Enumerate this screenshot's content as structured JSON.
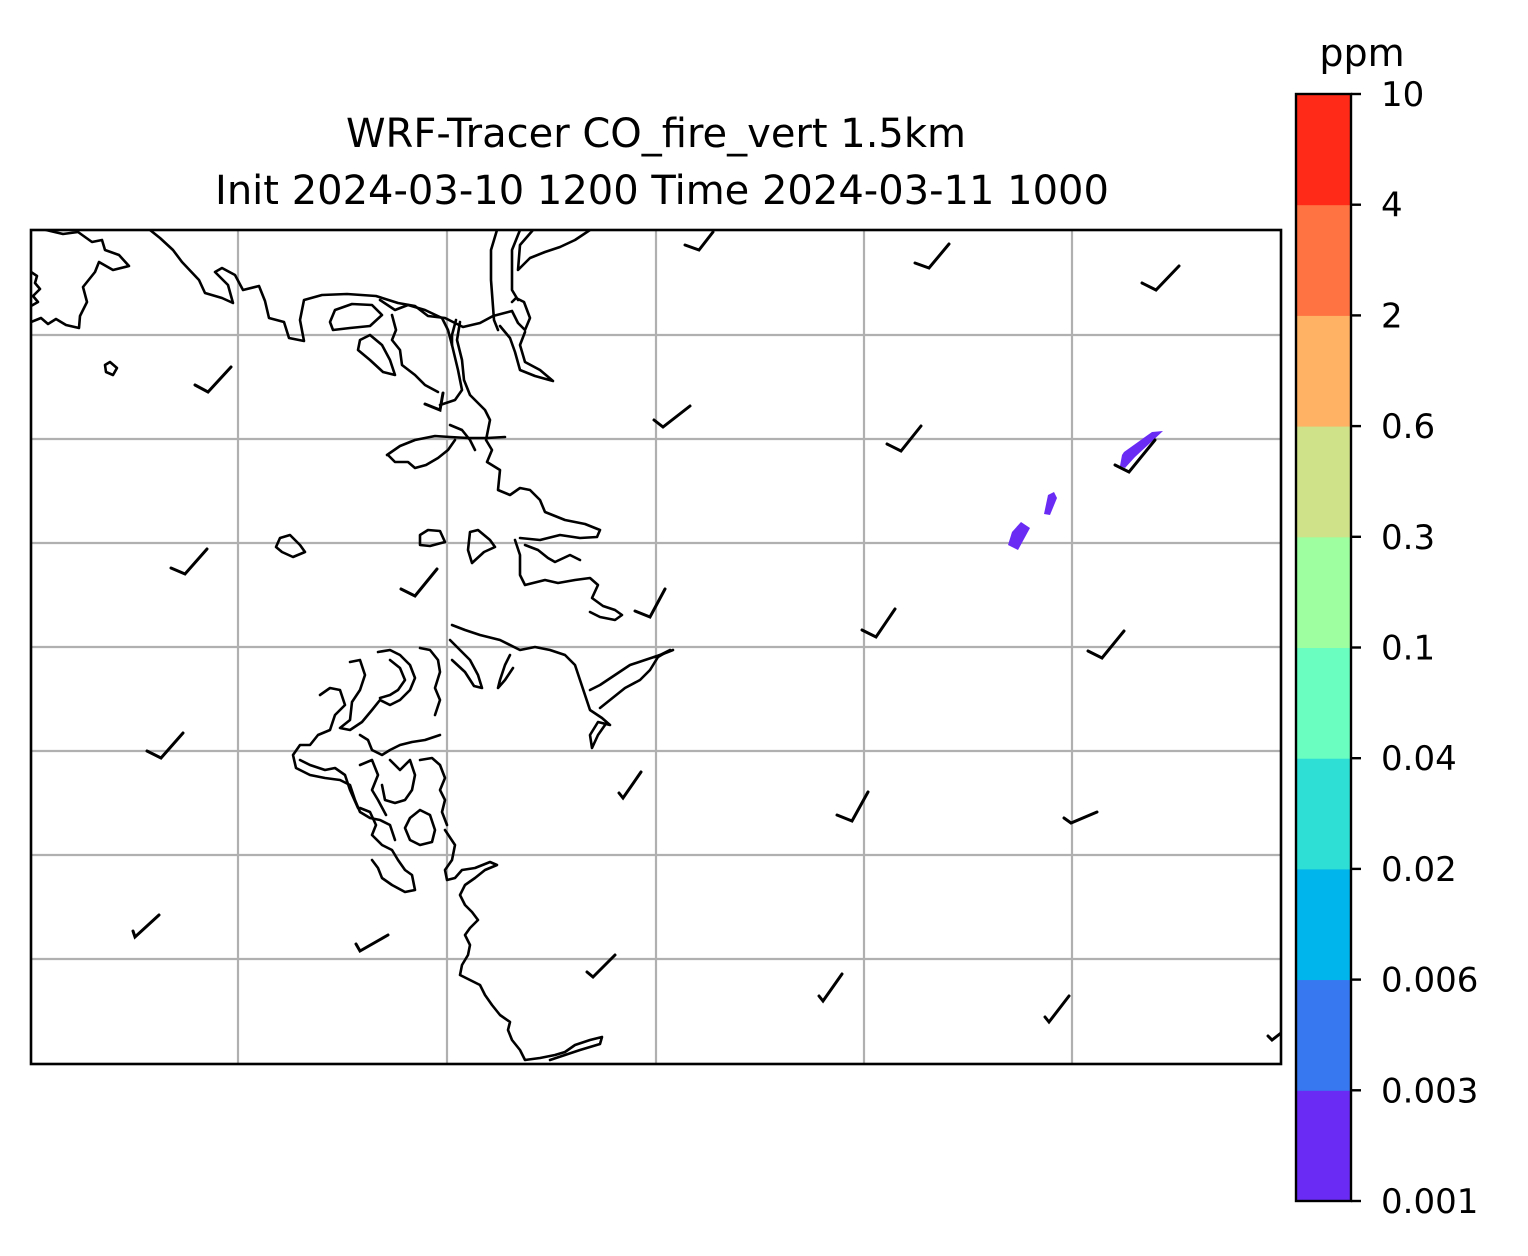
{
  "title": {
    "line1": "WRF-Tracer CO_fire_vert 1.5km",
    "line2": "Init 2024-03-10 1200 Time 2024-03-11 1000"
  },
  "colorbar": {
    "unit": "ppm",
    "levels": [
      "0.001",
      "0.003",
      "0.006",
      "0.02",
      "0.04",
      "0.1",
      "0.3",
      "0.6",
      "2",
      "4",
      "10"
    ],
    "colors": [
      "#6a2cf5",
      "#3777f0",
      "#00b5eb",
      "#2ddfd5",
      "#6affc0",
      "#9dffa0",
      "#d0e289",
      "#ffb264",
      "#ff7343",
      "#ff2a18"
    ]
  },
  "map": {
    "gridlines": true,
    "plume_color": "#6a2cf5",
    "coastline_color": "#000000"
  },
  "chart_data": {
    "type": "heatmap",
    "title": "WRF-Tracer CO_fire_vert 1.5km\nInit 2024-03-10 1200 Time 2024-03-11 1000",
    "colorbar_label": "ppm",
    "colorbar_ticks": [
      "0.001",
      "0.003",
      "0.006",
      "0.02",
      "0.04",
      "0.1",
      "0.3",
      "0.6",
      "2",
      "4",
      "10"
    ],
    "gridlines": true,
    "features": [
      "coastlines",
      "wind barbs",
      "CO tracer contour 0.001-0.003 ppm"
    ]
  }
}
